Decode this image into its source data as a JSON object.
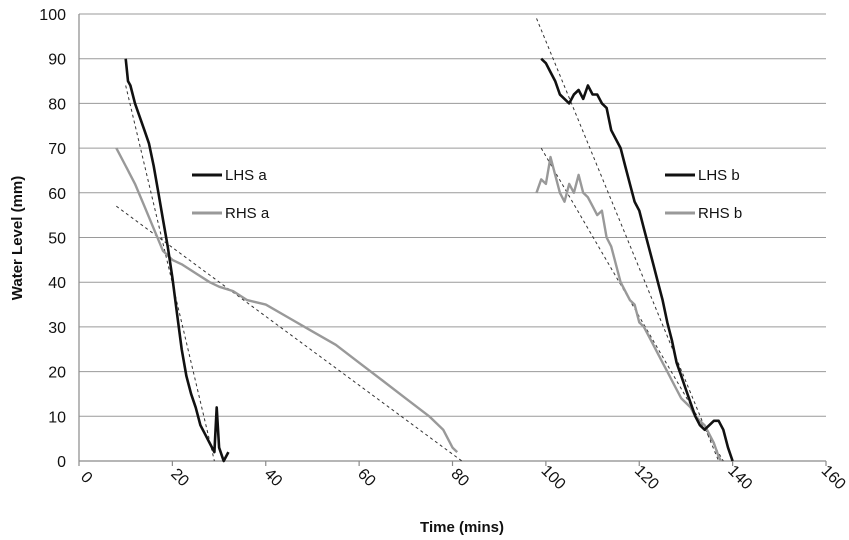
{
  "chart_data": {
    "type": "line",
    "xlabel": "Time (mins)",
    "ylabel": "Water Level (mm)",
    "xlim": [
      0,
      160
    ],
    "ylim": [
      0,
      100
    ],
    "x_ticks": [
      "0",
      "20",
      "40",
      "60",
      "80",
      "100",
      "120",
      "140",
      "160"
    ],
    "y_ticks": [
      "0",
      "10",
      "20",
      "30",
      "40",
      "50",
      "60",
      "70",
      "80",
      "90",
      "100"
    ],
    "grid": "horizontal",
    "legend": [
      {
        "name": "LHS a",
        "color": "#111111",
        "placement": "upper-left"
      },
      {
        "name": "RHS a",
        "color": "#999999",
        "placement": "upper-left"
      },
      {
        "name": "LHS b",
        "color": "#111111",
        "placement": "upper-right"
      },
      {
        "name": "RHS b",
        "color": "#999999",
        "placement": "upper-right"
      }
    ],
    "series": [
      {
        "name": "LHS a",
        "color": "#111111",
        "points": [
          [
            10,
            90
          ],
          [
            10.5,
            85
          ],
          [
            11,
            84
          ],
          [
            12,
            80
          ],
          [
            13,
            77
          ],
          [
            14,
            74
          ],
          [
            15,
            71
          ],
          [
            16,
            66
          ],
          [
            17,
            60
          ],
          [
            18,
            54
          ],
          [
            19,
            48
          ],
          [
            20,
            41
          ],
          [
            21,
            33
          ],
          [
            22,
            25
          ],
          [
            23,
            19
          ],
          [
            24,
            15
          ],
          [
            25,
            12
          ],
          [
            26,
            8
          ],
          [
            27,
            6
          ],
          [
            28,
            4
          ],
          [
            29,
            2
          ],
          [
            29.5,
            12
          ],
          [
            30,
            3
          ],
          [
            31,
            0
          ],
          [
            32,
            2
          ]
        ]
      },
      {
        "name": "RHS a",
        "color": "#999999",
        "points": [
          [
            8,
            70
          ],
          [
            10,
            66
          ],
          [
            12,
            62
          ],
          [
            14,
            57
          ],
          [
            16,
            52
          ],
          [
            18,
            47
          ],
          [
            20,
            45
          ],
          [
            22,
            44
          ],
          [
            25,
            42
          ],
          [
            28,
            40
          ],
          [
            30,
            39
          ],
          [
            33,
            38
          ],
          [
            36,
            36
          ],
          [
            40,
            35
          ],
          [
            45,
            32
          ],
          [
            50,
            29
          ],
          [
            55,
            26
          ],
          [
            60,
            22
          ],
          [
            65,
            18
          ],
          [
            70,
            14
          ],
          [
            75,
            10
          ],
          [
            78,
            7
          ],
          [
            80,
            3
          ],
          [
            81,
            2
          ]
        ]
      },
      {
        "name": "LHS b",
        "color": "#111111",
        "points": [
          [
            99,
            90
          ],
          [
            100,
            89
          ],
          [
            101,
            87
          ],
          [
            102,
            85
          ],
          [
            103,
            82
          ],
          [
            104,
            81
          ],
          [
            105,
            80
          ],
          [
            106,
            82
          ],
          [
            107,
            83
          ],
          [
            108,
            81
          ],
          [
            109,
            84
          ],
          [
            110,
            82
          ],
          [
            111,
            82
          ],
          [
            112,
            80
          ],
          [
            113,
            79
          ],
          [
            114,
            74
          ],
          [
            115,
            72
          ],
          [
            116,
            70
          ],
          [
            117,
            66
          ],
          [
            118,
            62
          ],
          [
            119,
            58
          ],
          [
            120,
            56
          ],
          [
            121,
            52
          ],
          [
            122,
            48
          ],
          [
            123,
            44
          ],
          [
            124,
            40
          ],
          [
            125,
            36
          ],
          [
            126,
            31
          ],
          [
            127,
            27
          ],
          [
            128,
            22
          ],
          [
            129,
            19
          ],
          [
            130,
            16
          ],
          [
            131,
            13
          ],
          [
            132,
            10
          ],
          [
            133,
            8
          ],
          [
            134,
            7
          ],
          [
            135,
            8
          ],
          [
            136,
            9
          ],
          [
            137,
            9
          ],
          [
            138,
            7
          ],
          [
            139,
            3
          ],
          [
            140,
            0
          ]
        ]
      },
      {
        "name": "RHS b",
        "color": "#999999",
        "points": [
          [
            98,
            60
          ],
          [
            99,
            63
          ],
          [
            100,
            62
          ],
          [
            101,
            68
          ],
          [
            102,
            64
          ],
          [
            103,
            60
          ],
          [
            104,
            58
          ],
          [
            105,
            62
          ],
          [
            106,
            60
          ],
          [
            107,
            64
          ],
          [
            108,
            60
          ],
          [
            109,
            59
          ],
          [
            110,
            57
          ],
          [
            111,
            55
          ],
          [
            112,
            56
          ],
          [
            113,
            50
          ],
          [
            114,
            48
          ],
          [
            115,
            44
          ],
          [
            116,
            40
          ],
          [
            117,
            38
          ],
          [
            118,
            36
          ],
          [
            119,
            35
          ],
          [
            120,
            31
          ],
          [
            121,
            30
          ],
          [
            122,
            28
          ],
          [
            123,
            26
          ],
          [
            124,
            24
          ],
          [
            125,
            22
          ],
          [
            126,
            20
          ],
          [
            127,
            18
          ],
          [
            128,
            16
          ],
          [
            129,
            14
          ],
          [
            130,
            13
          ],
          [
            131,
            12
          ],
          [
            132,
            10
          ],
          [
            133,
            9
          ],
          [
            134,
            8
          ],
          [
            135,
            6
          ],
          [
            136,
            4
          ],
          [
            137,
            1
          ],
          [
            137.5,
            0
          ]
        ]
      }
    ],
    "trendlines": [
      {
        "series": "LHS a",
        "x": [
          10,
          29
        ],
        "y": [
          84,
          0
        ]
      },
      {
        "series": "RHS a",
        "x": [
          8,
          82
        ],
        "y": [
          57,
          0
        ]
      },
      {
        "series": "LHS b",
        "x": [
          98,
          137
        ],
        "y": [
          99,
          0
        ]
      },
      {
        "series": "RHS b",
        "x": [
          99,
          138
        ],
        "y": [
          70,
          0
        ]
      }
    ]
  }
}
